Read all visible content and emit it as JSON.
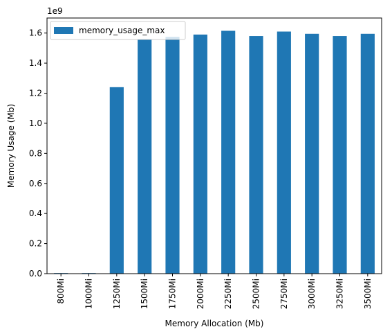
{
  "chart_data": {
    "type": "bar",
    "categories": [
      "800Mi",
      "1000Mi",
      "1250Mi",
      "1500Mi",
      "1750Mi",
      "2000Mi",
      "2250Mi",
      "2500Mi",
      "2750Mi",
      "3000Mi",
      "3250Mi",
      "3500Mi"
    ],
    "series": [
      {
        "name": "memory_usage_max",
        "values": [
          4000000,
          4000000,
          1240000000,
          1555000000,
          1575000000,
          1590000000,
          1615000000,
          1580000000,
          1610000000,
          1595000000,
          1580000000,
          1595000000
        ],
        "color": "#1f77b4"
      }
    ],
    "title": "",
    "xlabel": "Memory Allocation (Mb)",
    "ylabel": "Memory Usage (Mb)",
    "ylim": [
      0,
      1700000000
    ],
    "y_ticks": [
      0,
      200000000,
      400000000,
      600000000,
      800000000,
      1000000000,
      1200000000,
      1400000000,
      1600000000
    ],
    "y_tick_labels": [
      "0.0",
      "0.2",
      "0.4",
      "0.6",
      "0.8",
      "1.0",
      "1.2",
      "1.4",
      "1.6"
    ],
    "y_offset_label": "1e9",
    "legend_position": "upper-left",
    "grid": false
  }
}
